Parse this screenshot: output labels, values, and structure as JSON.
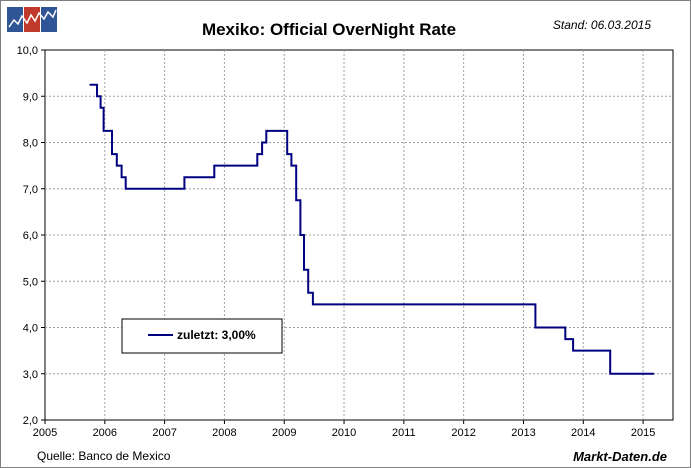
{
  "logo": {
    "colors": [
      "#2f5597",
      "#c0392b",
      "#2f5597"
    ]
  },
  "chart_data": {
    "type": "line",
    "title": "Mexiko: Official OverNight Rate",
    "stand": "Stand: 06.03.2015",
    "source": "Quelle: Banco de Mexico",
    "brand": "Markt-Daten.de",
    "legend": {
      "label": "zuletzt: 3,00%",
      "placement": "center-left"
    },
    "xlim": [
      2005,
      2015.5
    ],
    "ylim": [
      2.0,
      10.0
    ],
    "x_ticks": [
      2005,
      2006,
      2007,
      2008,
      2009,
      2010,
      2011,
      2012,
      2013,
      2014,
      2015
    ],
    "x_tick_labels": [
      "2005",
      "2006",
      "2007",
      "2008",
      "2009",
      "2010",
      "2011",
      "2012",
      "2013",
      "2014",
      "2015"
    ],
    "y_ticks": [
      2,
      3,
      4,
      5,
      6,
      7,
      8,
      9,
      10
    ],
    "y_tick_labels": [
      "2,0",
      "3,0",
      "4,0",
      "5,0",
      "6,0",
      "7,0",
      "8,0",
      "9,0",
      "10,0"
    ],
    "grid": true,
    "line_color": "#000080",
    "series": [
      {
        "name": "Official OverNight Rate",
        "step": true,
        "x": [
          2005.75,
          2005.87,
          2005.93,
          2005.98,
          2006.12,
          2006.2,
          2006.28,
          2006.35,
          2007.33,
          2007.83,
          2008.55,
          2008.63,
          2008.7,
          2009.05,
          2009.12,
          2009.2,
          2009.27,
          2009.33,
          2009.4,
          2009.48,
          2009.55,
          2013.2,
          2013.7,
          2013.83,
          2014.45,
          2015.18
        ],
        "y": [
          9.25,
          9.0,
          8.75,
          8.25,
          7.75,
          7.5,
          7.25,
          7.0,
          7.25,
          7.5,
          7.75,
          8.0,
          8.25,
          7.75,
          7.5,
          6.75,
          6.0,
          5.25,
          4.75,
          4.5,
          4.5,
          4.0,
          3.75,
          3.5,
          3.0,
          3.0
        ]
      }
    ]
  }
}
